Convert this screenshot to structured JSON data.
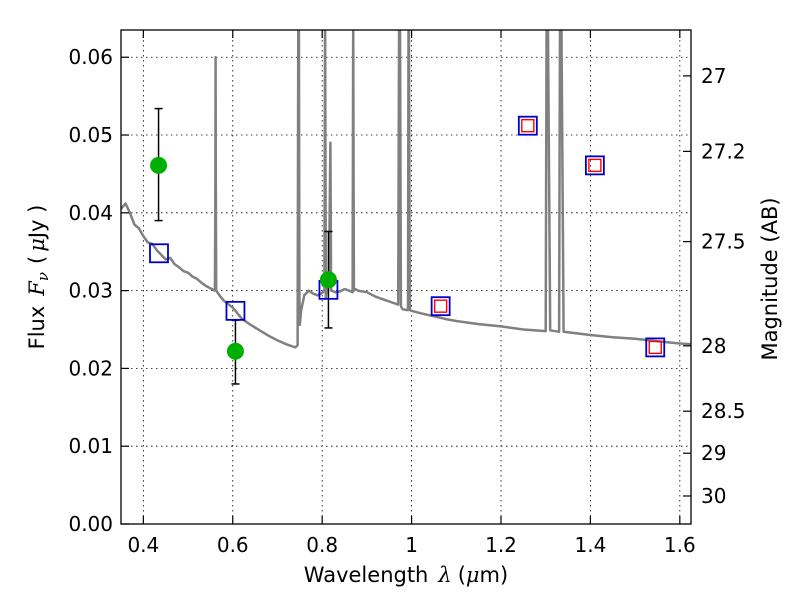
{
  "chart_data": {
    "type": "scatter",
    "xlabel_text": "Wavelength",
    "xlabel_symbol": "λ",
    "xlabel_unit_open": "(",
    "xlabel_unit_mu": "μ",
    "xlabel_unit_rest": "m)",
    "ylabel_text": "Flux",
    "ylabel_symbol": "F",
    "ylabel_sub": "ν",
    "ylabel_unit_open": "(",
    "ylabel_unit_mu": "μ",
    "ylabel_unit_rest": "Jy )",
    "y2label": "Magnitude (AB)",
    "xlim": [
      0.35,
      1.625
    ],
    "ylim": [
      0,
      0.0635
    ],
    "grid": true,
    "xticks": [
      0.4,
      0.6,
      0.8,
      1.0,
      1.2,
      1.4,
      1.6
    ],
    "xtick_labels": [
      "0.4",
      "0.6",
      "0.8",
      "1",
      "1.2",
      "1.4",
      "1.6"
    ],
    "yticks": [
      0.0,
      0.01,
      0.02,
      0.03,
      0.04,
      0.05,
      0.06
    ],
    "ytick_labels": [
      "0.00",
      "0.01",
      "0.02",
      "0.03",
      "0.04",
      "0.05",
      "0.06"
    ],
    "y2ticks": [
      {
        "label": "27",
        "flux": 0.0576
      },
      {
        "label": "27.2",
        "flux": 0.0479
      },
      {
        "label": "27.5",
        "flux": 0.0363
      },
      {
        "label": "28",
        "flux": 0.0229
      },
      {
        "label": "28.5",
        "flux": 0.0145
      },
      {
        "label": "29",
        "flux": 0.0091
      },
      {
        "label": "30",
        "flux": 0.0036
      }
    ],
    "colors": {
      "model": "#808080",
      "observed": "#00b000",
      "model_band": "#0000cc",
      "upper": "#ff0000",
      "errorbar": "#000000",
      "grid": "#000000"
    },
    "series": [
      {
        "kind": "model_spectrum",
        "x": [
          0.35,
          0.36,
          0.37,
          0.38,
          0.39,
          0.4,
          0.41,
          0.42,
          0.43,
          0.44,
          0.45,
          0.46,
          0.47,
          0.48,
          0.49,
          0.5,
          0.51,
          0.52,
          0.53,
          0.54,
          0.55,
          0.56,
          0.561,
          0.5615,
          0.562,
          0.563,
          0.57,
          0.58,
          0.6,
          0.62,
          0.64,
          0.66,
          0.68,
          0.7,
          0.72,
          0.74,
          0.745,
          0.7465,
          0.748,
          0.749,
          0.75,
          0.753,
          0.76,
          0.77,
          0.78,
          0.79,
          0.8,
          0.805,
          0.8065,
          0.808,
          0.81,
          0.815,
          0.8185,
          0.82,
          0.83,
          0.84,
          0.85,
          0.86,
          0.868,
          0.8695,
          0.871,
          0.875,
          0.88,
          0.9,
          0.92,
          0.95,
          0.97,
          0.972,
          0.973,
          0.974,
          0.976,
          0.98,
          0.992,
          0.993,
          0.994,
          0.996,
          1.0,
          1.02,
          1.05,
          1.08,
          1.1,
          1.15,
          1.2,
          1.25,
          1.3,
          1.302,
          1.303,
          1.305,
          1.31,
          1.33,
          1.332,
          1.333,
          1.335,
          1.34,
          1.4,
          1.45,
          1.5,
          1.55,
          1.6,
          1.625
        ],
        "y": [
          0.0405,
          0.0412,
          0.04,
          0.0385,
          0.038,
          0.037,
          0.0362,
          0.036,
          0.0352,
          0.0346,
          0.034,
          0.0342,
          0.0334,
          0.033,
          0.0325,
          0.0323,
          0.0318,
          0.0315,
          0.031,
          0.0306,
          0.0303,
          0.03,
          0.04,
          0.06,
          0.045,
          0.03,
          0.0294,
          0.0287,
          0.0278,
          0.0264,
          0.0256,
          0.0249,
          0.0242,
          0.0236,
          0.0231,
          0.0227,
          0.023,
          0.065,
          0.065,
          0.03,
          0.0256,
          0.0275,
          0.0294,
          0.03,
          0.0296,
          0.0294,
          0.0297,
          0.03,
          0.065,
          0.029,
          0.0302,
          0.0305,
          0.049,
          0.03,
          0.0298,
          0.0299,
          0.0302,
          0.03,
          0.0298,
          0.065,
          0.03,
          0.0302,
          0.03,
          0.0298,
          0.0292,
          0.0286,
          0.0282,
          0.065,
          0.065,
          0.065,
          0.028,
          0.0276,
          0.0275,
          0.065,
          0.065,
          0.0275,
          0.0274,
          0.0271,
          0.0267,
          0.0263,
          0.0261,
          0.0257,
          0.0254,
          0.025,
          0.0248,
          0.065,
          0.065,
          0.065,
          0.0249,
          0.0247,
          0.065,
          0.065,
          0.065,
          0.0247,
          0.0243,
          0.024,
          0.0238,
          0.0235,
          0.0232,
          0.0231
        ]
      },
      {
        "kind": "observed",
        "marker": "filled-circle",
        "x": [
          0.434,
          0.606,
          0.814
        ],
        "y": [
          0.0461,
          0.0222,
          0.0314
        ],
        "yerr_low": [
          0.039,
          0.018,
          0.0252
        ],
        "yerr_high": [
          0.0534,
          0.0262,
          0.0376
        ]
      },
      {
        "kind": "model_band",
        "marker": "open-square",
        "x": [
          0.435,
          0.606,
          0.814,
          1.065,
          1.26,
          1.41,
          1.545
        ],
        "y": [
          0.0348,
          0.0274,
          0.0301,
          0.028,
          0.0512,
          0.0461,
          0.0227
        ]
      },
      {
        "kind": "upper_limit",
        "marker": "open-square",
        "x": [
          1.065,
          1.26,
          1.41,
          1.545
        ],
        "y": [
          0.028,
          0.0512,
          0.0461,
          0.0227
        ]
      }
    ]
  }
}
